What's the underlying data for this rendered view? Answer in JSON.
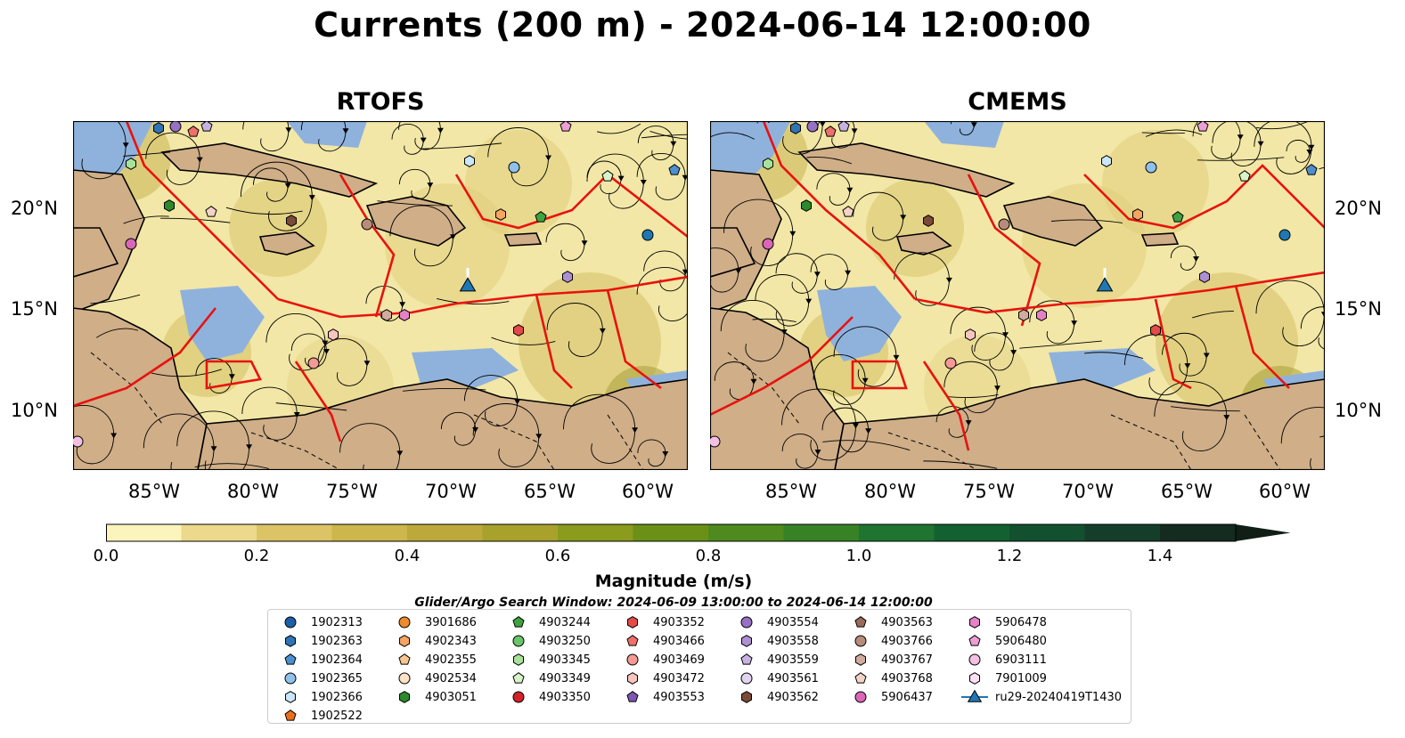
{
  "title": "Currents (200 m) - 2024-06-14 12:00:00",
  "panels": [
    {
      "name": "RTOFS"
    },
    {
      "name": "CMEMS"
    }
  ],
  "lat_labels": [
    "20°N",
    "15°N",
    "10°N"
  ],
  "lon_labels": [
    "85°W",
    "80°W",
    "75°W",
    "70°W",
    "65°W",
    "60°W"
  ],
  "colorbar": {
    "label": "Magnitude (m/s)",
    "ticks": [
      "0.0",
      "0.2",
      "0.4",
      "0.6",
      "0.8",
      "1.0",
      "1.2",
      "1.4"
    ],
    "min": 0.0,
    "max": 1.5,
    "step": 0.1,
    "colors": [
      "#fbf4bd",
      "#ecd98c",
      "#dcc466",
      "#cdb64b",
      "#bda93b",
      "#a8a12c",
      "#8a9b1d",
      "#6b9017",
      "#4e8a1e",
      "#378224",
      "#1f7430",
      "#136130",
      "#125030",
      "#143e29",
      "#142b1f",
      "#101e16"
    ]
  },
  "search_window": "Glider/Argo Search Window: 2024-06-09 13:00:00 to 2024-06-14 12:00:00",
  "legend": [
    {
      "label": "1902313",
      "marker": "circle",
      "color": "#1f5ea8"
    },
    {
      "label": "1902363",
      "marker": "hexagon",
      "color": "#2f74b5"
    },
    {
      "label": "1902364",
      "marker": "pentagon",
      "color": "#4d8fd0"
    },
    {
      "label": "1902365",
      "marker": "circle",
      "color": "#8fc1ea"
    },
    {
      "label": "1902366",
      "marker": "hexagon",
      "color": "#c9e6fa"
    },
    {
      "label": "1902522",
      "marker": "pentagon",
      "color": "#e8701a"
    },
    {
      "label": "3901686",
      "marker": "circle",
      "color": "#f08b2c"
    },
    {
      "label": "4902343",
      "marker": "hexagon",
      "color": "#f7a560"
    },
    {
      "label": "4902355",
      "marker": "pentagon",
      "color": "#f7c590"
    },
    {
      "label": "4902534",
      "marker": "circle",
      "color": "#fbe3c8"
    },
    {
      "label": "4903051",
      "marker": "hexagon",
      "color": "#2c8a2c"
    },
    {
      "label": "4903244",
      "marker": "pentagon",
      "color": "#3ea33e"
    },
    {
      "label": "4903250",
      "marker": "circle",
      "color": "#6ac46a"
    },
    {
      "label": "4903345",
      "marker": "hexagon",
      "color": "#a8e29a"
    },
    {
      "label": "4903349",
      "marker": "pentagon",
      "color": "#d7f4c8"
    },
    {
      "label": "4903350",
      "marker": "circle",
      "color": "#d2232a"
    },
    {
      "label": "4903352",
      "marker": "hexagon",
      "color": "#e34a48"
    },
    {
      "label": "4903466",
      "marker": "pentagon",
      "color": "#ef6f6b"
    },
    {
      "label": "4903469",
      "marker": "circle",
      "color": "#f39a94"
    },
    {
      "label": "4903472",
      "marker": "hexagon",
      "color": "#f8c4be"
    },
    {
      "label": "4903553",
      "marker": "pentagon",
      "color": "#7d57b3"
    },
    {
      "label": "4903554",
      "marker": "circle",
      "color": "#9671c4"
    },
    {
      "label": "4903558",
      "marker": "hexagon",
      "color": "#ad90d2"
    },
    {
      "label": "4903559",
      "marker": "pentagon",
      "color": "#c7b3e2"
    },
    {
      "label": "4903561",
      "marker": "circle",
      "color": "#e0d4f1"
    },
    {
      "label": "4903562",
      "marker": "hexagon",
      "color": "#7a4a38"
    },
    {
      "label": "4903563",
      "marker": "pentagon",
      "color": "#9a6a5a"
    },
    {
      "label": "4903766",
      "marker": "circle",
      "color": "#b98b7c"
    },
    {
      "label": "4903767",
      "marker": "hexagon",
      "color": "#d1ab9e"
    },
    {
      "label": "4903768",
      "marker": "pentagon",
      "color": "#f3d3c6"
    },
    {
      "label": "5906437",
      "marker": "circle",
      "color": "#d966b7"
    },
    {
      "label": "5906478",
      "marker": "hexagon",
      "color": "#e383c6"
    },
    {
      "label": "5906480",
      "marker": "pentagon",
      "color": "#ec9fd4"
    },
    {
      "label": "6903111",
      "marker": "circle",
      "color": "#f3bfe2"
    },
    {
      "label": "7901009",
      "marker": "hexagon",
      "color": "#fbe0f1"
    },
    {
      "label": "ru29-20240419T1430",
      "marker": "triangle-line",
      "color": "#1f77b4"
    }
  ]
}
